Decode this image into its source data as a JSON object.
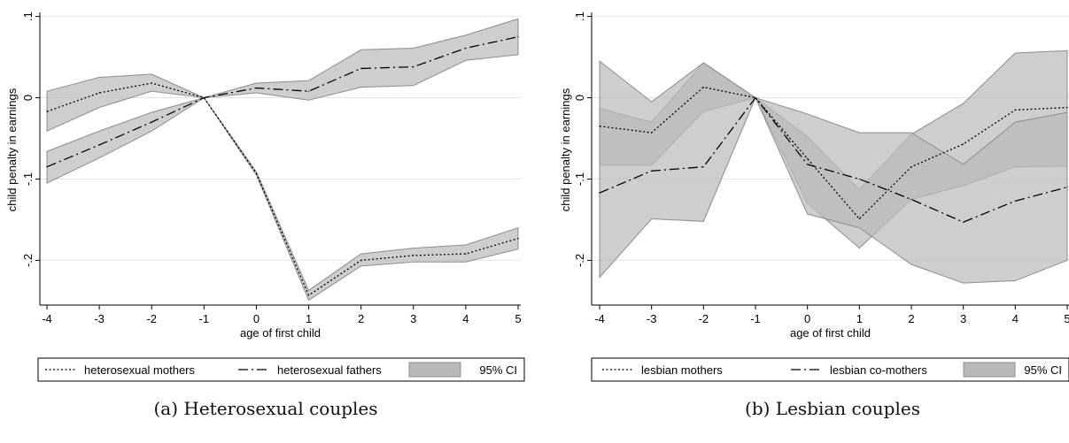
{
  "chart_data": [
    {
      "type": "line",
      "caption": "(a) Heterosexual couples",
      "xlabel": "age of first child",
      "ylabel": "child penalty in earnings",
      "x": [
        -4,
        -3,
        -2,
        -1,
        0,
        1,
        2,
        3,
        4,
        5
      ],
      "xlim": [
        -4,
        5
      ],
      "ylim": [
        -0.255,
        0.105
      ],
      "yticks": [
        0.1,
        0,
        -0.1,
        -0.2
      ],
      "ytick_labels": [
        ".1",
        "0",
        "-.1",
        "-.2"
      ],
      "grid": true,
      "legend_position": "bottom",
      "legend": [
        "heterosexual mothers",
        "heterosexual fathers",
        "95% CI"
      ],
      "series": [
        {
          "name": "heterosexual mothers",
          "style": "dotted",
          "values": [
            -0.017,
            0.006,
            0.018,
            0.0,
            -0.093,
            -0.243,
            -0.2,
            -0.194,
            -0.192,
            -0.173
          ],
          "ci_low": [
            -0.041,
            -0.012,
            0.008,
            0.0,
            -0.095,
            -0.249,
            -0.207,
            -0.202,
            -0.202,
            -0.186
          ],
          "ci_high": [
            0.008,
            0.025,
            0.029,
            0.0,
            -0.091,
            -0.237,
            -0.192,
            -0.185,
            -0.181,
            -0.16
          ]
        },
        {
          "name": "heterosexual fathers",
          "style": "dashdot",
          "values": [
            -0.085,
            -0.058,
            -0.03,
            0.0,
            0.012,
            0.008,
            0.036,
            0.038,
            0.061,
            0.075
          ],
          "ci_low": [
            -0.105,
            -0.074,
            -0.041,
            0.0,
            0.006,
            -0.003,
            0.013,
            0.015,
            0.046,
            0.053
          ],
          "ci_high": [
            -0.066,
            -0.041,
            -0.018,
            0.0,
            0.018,
            0.021,
            0.059,
            0.061,
            0.077,
            0.097
          ]
        }
      ]
    },
    {
      "type": "line",
      "caption": "(b) Lesbian couples",
      "xlabel": "age of first child",
      "ylabel": "child penalty in earnings",
      "x": [
        -4,
        -3,
        -2,
        -1,
        0,
        1,
        2,
        3,
        4,
        5
      ],
      "xlim": [
        -4,
        5
      ],
      "ylim": [
        -0.255,
        0.105
      ],
      "yticks": [
        0.1,
        0,
        -0.1,
        -0.2
      ],
      "ytick_labels": [
        ".1",
        "0",
        "-.1",
        "-.2"
      ],
      "grid": true,
      "legend_position": "bottom",
      "legend": [
        "lesbian mothers",
        "lesbian co-mothers",
        "95% CI"
      ],
      "series": [
        {
          "name": "lesbian mothers",
          "style": "dotted",
          "values": [
            -0.035,
            -0.043,
            0.013,
            0.0,
            -0.075,
            -0.149,
            -0.085,
            -0.057,
            -0.015,
            -0.012
          ],
          "ci_low": [
            -0.083,
            -0.083,
            -0.017,
            0.0,
            -0.13,
            -0.185,
            -0.125,
            -0.108,
            -0.085,
            -0.084
          ],
          "ci_high": [
            -0.013,
            -0.03,
            0.043,
            0.0,
            -0.048,
            -0.113,
            -0.045,
            -0.007,
            0.055,
            0.058
          ]
        },
        {
          "name": "lesbian co-mothers",
          "style": "dashdot",
          "values": [
            -0.117,
            -0.09,
            -0.085,
            0.0,
            -0.082,
            -0.1,
            -0.125,
            -0.153,
            -0.127,
            -0.11
          ],
          "ci_low": [
            -0.221,
            -0.149,
            -0.152,
            0.0,
            -0.143,
            -0.16,
            -0.205,
            -0.228,
            -0.225,
            -0.2
          ],
          "ci_high": [
            0.045,
            -0.005,
            0.043,
            0.0,
            -0.02,
            -0.043,
            -0.043,
            -0.082,
            -0.03,
            -0.018
          ]
        }
      ]
    }
  ],
  "colors": {
    "ci_fill": "#b9b9b9",
    "ci_edge": "#8c8c8c",
    "grid": "#e4e4e4",
    "line": "#000000"
  }
}
